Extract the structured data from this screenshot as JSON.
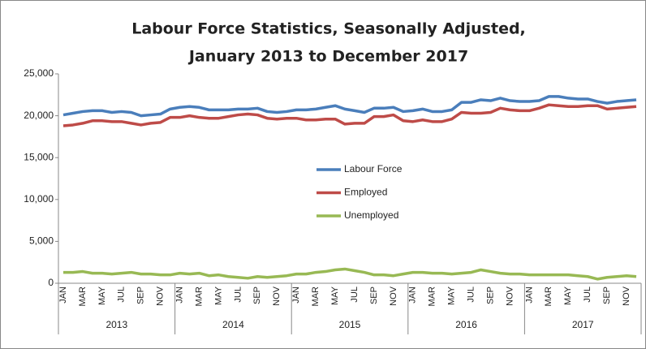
{
  "chart_data": {
    "type": "line",
    "title": [
      "Labour Force Statistics, Seasonally Adjusted,",
      "January 2013 to December 2017"
    ],
    "categories": [
      "JAN",
      null,
      "MAR",
      null,
      "MAY",
      null,
      "JUL",
      null,
      "SEP",
      null,
      "NOV",
      null,
      "JAN",
      null,
      "MAR",
      null,
      "MAY",
      null,
      "JUL",
      null,
      "SEP",
      null,
      "NOV",
      null,
      "JAN",
      null,
      "MAR",
      null,
      "MAY",
      null,
      "JUL",
      null,
      "SEP",
      null,
      "NOV",
      null,
      "JAN",
      null,
      "MAR",
      null,
      "MAY",
      null,
      "JUL",
      null,
      "SEP",
      null,
      "NOV",
      null,
      "JAN",
      null,
      "MAR",
      null,
      "MAY",
      null,
      "JUL",
      null,
      "SEP",
      null,
      "NOV",
      null
    ],
    "groups": [
      "2013",
      "2014",
      "2015",
      "2016",
      "2017"
    ],
    "series": [
      {
        "name": "Labour Force",
        "color": "#4a7ebb",
        "values": [
          20100,
          20300,
          20500,
          20600,
          20600,
          20400,
          20500,
          20400,
          20000,
          20100,
          20200,
          20800,
          21000,
          21100,
          21000,
          20700,
          20700,
          20700,
          20800,
          20800,
          20900,
          20500,
          20400,
          20500,
          20700,
          20700,
          20800,
          21000,
          21200,
          20800,
          20600,
          20400,
          20900,
          20900,
          21000,
          20500,
          20600,
          20800,
          20500,
          20500,
          20700,
          21600,
          21600,
          21900,
          21800,
          22100,
          21800,
          21700,
          21700,
          21800,
          22300,
          22300,
          22100,
          22000,
          22000,
          21700,
          21500,
          21700,
          21800,
          21900
        ]
      },
      {
        "name": "Employed",
        "color": "#be4b48",
        "values": [
          18800,
          18900,
          19100,
          19400,
          19400,
          19300,
          19300,
          19100,
          18900,
          19100,
          19200,
          19800,
          19800,
          20000,
          19800,
          19700,
          19700,
          19900,
          20100,
          20200,
          20100,
          19700,
          19600,
          19700,
          19700,
          19500,
          19500,
          19600,
          19600,
          19000,
          19100,
          19100,
          19900,
          19900,
          20100,
          19400,
          19300,
          19500,
          19300,
          19300,
          19600,
          20400,
          20300,
          20300,
          20400,
          20900,
          20700,
          20600,
          20600,
          20900,
          21300,
          21200,
          21100,
          21100,
          21200,
          21200,
          20800,
          20900,
          21000,
          21100
        ]
      },
      {
        "name": "Unemployed",
        "color": "#98b954",
        "values": [
          1300,
          1300,
          1400,
          1200,
          1200,
          1100,
          1200,
          1300,
          1100,
          1100,
          1000,
          1000,
          1200,
          1100,
          1200,
          900,
          1000,
          800,
          700,
          600,
          800,
          700,
          800,
          900,
          1100,
          1100,
          1300,
          1400,
          1600,
          1700,
          1500,
          1300,
          1000,
          1000,
          900,
          1100,
          1300,
          1300,
          1200,
          1200,
          1100,
          1200,
          1300,
          1600,
          1400,
          1200,
          1100,
          1100,
          1000,
          1000,
          1000,
          1000,
          1000,
          900,
          800,
          500,
          700,
          800,
          900,
          800
        ]
      }
    ],
    "ylim": [
      0,
      25000
    ],
    "yticks": [
      0,
      {
        "value": 5000,
        "label": "5,000"
      },
      {
        "value": 10000,
        "label": "10,000"
      },
      {
        "value": 15000,
        "label": "15,000"
      },
      {
        "value": 20000,
        "label": "20,000"
      },
      {
        "value": 25000,
        "label": "25,000"
      }
    ],
    "grid": false
  }
}
